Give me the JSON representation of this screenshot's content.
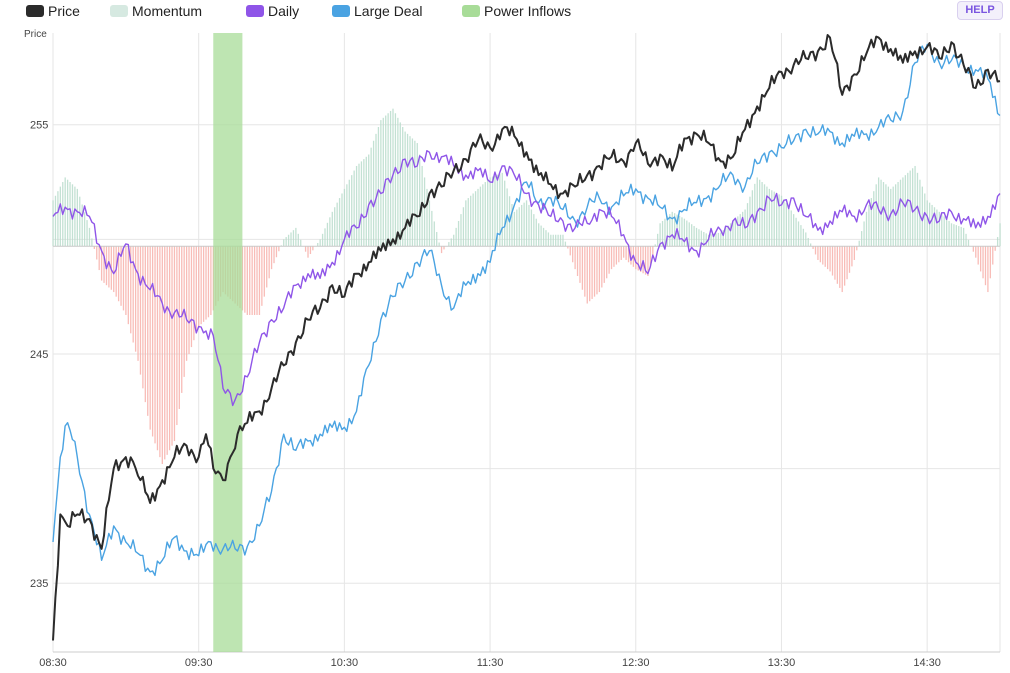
{
  "legend": [
    {
      "label": "Price",
      "color": "#2b2b2b"
    },
    {
      "label": "Momentum",
      "color": "#d6e9e1"
    },
    {
      "label": "Daily",
      "color": "#8f55e8"
    },
    {
      "label": "Large Deal",
      "color": "#4aa3e2"
    },
    {
      "label": "Power Inflows",
      "color": "#a8dc98"
    }
  ],
  "help_label": "HELP",
  "chart_data": {
    "type": "line",
    "ylabel": "Price",
    "y_ticks": [
      235,
      245,
      255
    ],
    "ylim": [
      232,
      259
    ],
    "x_ticks": [
      "08:30",
      "09:30",
      "10:30",
      "11:30",
      "12:30",
      "13:30",
      "14:30"
    ],
    "xlim": [
      "08:30",
      "15:00"
    ],
    "momentum_baseline": 249.7,
    "colors": {
      "price": "#2b2b2b",
      "daily": "#8f55e8",
      "large_deal": "#4aa3e2",
      "momentum_pos": "#b8dccb",
      "momentum_neg": "#f7b0aa",
      "power_inflows": "#a8dc98",
      "grid": "#e6e6e6"
    },
    "power_inflows": [
      {
        "start": "09:36",
        "end": "09:48"
      }
    ],
    "series": [
      {
        "name": "Price",
        "x": [
          "08:30",
          "08:33",
          "08:36",
          "08:40",
          "08:45",
          "08:50",
          "08:55",
          "09:00",
          "09:03",
          "09:06",
          "09:10",
          "09:15",
          "09:20",
          "09:25",
          "09:30",
          "09:33",
          "09:36",
          "09:40",
          "09:43",
          "09:46",
          "09:50",
          "09:55",
          "10:00",
          "10:05",
          "10:10",
          "10:15",
          "10:20",
          "10:25",
          "10:30",
          "10:35",
          "10:40",
          "10:45",
          "10:50",
          "10:55",
          "11:00",
          "11:05",
          "11:10",
          "11:15",
          "11:20",
          "11:25",
          "11:30",
          "11:35",
          "11:40",
          "11:45",
          "11:50",
          "11:55",
          "12:00",
          "12:05",
          "12:10",
          "12:15",
          "12:20",
          "12:25",
          "12:30",
          "12:35",
          "12:40",
          "12:45",
          "12:50",
          "12:55",
          "13:00",
          "13:05",
          "13:10",
          "13:15",
          "13:20",
          "13:25",
          "13:30",
          "13:35",
          "13:40",
          "13:45",
          "13:50",
          "13:55",
          "14:00",
          "14:05",
          "14:10",
          "14:15",
          "14:20",
          "14:25",
          "14:30",
          "14:35",
          "14:40",
          "14:45",
          "14:50",
          "14:55",
          "15:00"
        ],
        "values": [
          232.5,
          238.0,
          237.5,
          238.0,
          237.8,
          236.5,
          240.0,
          240.5,
          240.3,
          239.5,
          238.5,
          239.5,
          240.5,
          241.0,
          240.5,
          241.5,
          240.0,
          239.5,
          240.5,
          241.5,
          242.0,
          242.5,
          243.5,
          244.5,
          245.5,
          246.5,
          247.0,
          248.0,
          247.5,
          248.5,
          249.0,
          249.5,
          250.0,
          250.5,
          251.0,
          252.0,
          252.3,
          253.0,
          253.5,
          254.3,
          254.0,
          254.8,
          254.5,
          253.8,
          252.8,
          252.4,
          252.0,
          252.3,
          252.8,
          253.2,
          253.6,
          253.4,
          254.2,
          253.3,
          253.7,
          253.0,
          254.4,
          254.6,
          254.2,
          253.4,
          253.6,
          254.8,
          255.8,
          256.6,
          257.3,
          257.6,
          257.9,
          258.2,
          258.8,
          256.3,
          257.2,
          258.1,
          258.8,
          258.3,
          257.7,
          258.2,
          258.4,
          257.9,
          258.6,
          257.6,
          256.6,
          257.4,
          256.9
        ]
      },
      {
        "name": "Daily",
        "x": [
          "08:30",
          "08:35",
          "08:40",
          "08:45",
          "08:50",
          "08:55",
          "09:00",
          "09:05",
          "09:10",
          "09:15",
          "09:20",
          "09:25",
          "09:30",
          "09:33",
          "09:36",
          "09:40",
          "09:45",
          "09:50",
          "09:55",
          "10:00",
          "10:05",
          "10:10",
          "10:15",
          "10:20",
          "10:25",
          "10:30",
          "10:35",
          "10:40",
          "10:45",
          "10:50",
          "10:55",
          "11:00",
          "11:05",
          "11:10",
          "11:15",
          "11:20",
          "11:25",
          "11:30",
          "11:35",
          "11:40",
          "11:45",
          "11:50",
          "11:55",
          "12:00",
          "12:05",
          "12:10",
          "12:15",
          "12:20",
          "12:25",
          "12:30",
          "12:35",
          "12:40",
          "12:45",
          "12:50",
          "12:55",
          "13:00",
          "13:05",
          "13:10",
          "13:15",
          "13:20",
          "13:25",
          "13:30",
          "13:35",
          "13:40",
          "13:45",
          "13:50",
          "13:55",
          "14:00",
          "14:05",
          "14:10",
          "14:15",
          "14:20",
          "14:25",
          "14:30",
          "14:35",
          "14:40",
          "14:45",
          "14:50",
          "14:55",
          "15:00"
        ],
        "values": [
          251.0,
          251.4,
          251.2,
          251.0,
          249.5,
          248.5,
          249.8,
          248.5,
          247.8,
          247.2,
          246.8,
          246.5,
          246.2,
          246.0,
          245.8,
          243.5,
          243.0,
          244.0,
          245.5,
          246.5,
          247.0,
          248.0,
          248.5,
          248.3,
          249.0,
          250.0,
          250.5,
          251.5,
          252.0,
          252.8,
          253.5,
          253.2,
          253.8,
          253.6,
          253.2,
          252.8,
          253.0,
          252.5,
          253.2,
          252.8,
          252.0,
          251.5,
          251.0,
          250.8,
          250.5,
          250.7,
          251.3,
          251.0,
          250.2,
          249.0,
          248.5,
          249.8,
          250.2,
          249.9,
          249.5,
          250.0,
          250.4,
          250.8,
          250.5,
          251.2,
          251.8,
          251.5,
          251.8,
          251.0,
          250.4,
          250.8,
          251.2,
          251.0,
          251.5,
          251.3,
          251.1,
          251.6,
          251.3,
          251.0,
          250.8,
          251.2,
          250.9,
          250.5,
          251.0,
          252.0
        ]
      },
      {
        "name": "Large Deal",
        "x": [
          "08:30",
          "08:33",
          "08:36",
          "08:40",
          "08:45",
          "08:50",
          "08:55",
          "09:00",
          "09:05",
          "09:10",
          "09:15",
          "09:20",
          "09:25",
          "09:30",
          "09:35",
          "09:40",
          "09:45",
          "09:50",
          "09:55",
          "10:00",
          "10:05",
          "10:10",
          "10:15",
          "10:20",
          "10:25",
          "10:30",
          "10:35",
          "10:40",
          "10:45",
          "10:50",
          "10:55",
          "11:00",
          "11:05",
          "11:10",
          "11:15",
          "11:20",
          "11:25",
          "11:30",
          "11:35",
          "11:40",
          "11:45",
          "11:50",
          "11:55",
          "12:00",
          "12:05",
          "12:10",
          "12:15",
          "12:20",
          "12:25",
          "12:30",
          "12:35",
          "12:40",
          "12:45",
          "12:50",
          "12:55",
          "13:00",
          "13:05",
          "13:10",
          "13:15",
          "13:20",
          "13:25",
          "13:30",
          "13:35",
          "13:40",
          "13:45",
          "13:50",
          "13:55",
          "14:00",
          "14:05",
          "14:10",
          "14:15",
          "14:20",
          "14:25",
          "14:30",
          "14:35",
          "14:40",
          "14:45",
          "14:50",
          "14:55",
          "15:00"
        ],
        "values": [
          236.8,
          240.5,
          242.0,
          240.5,
          238.0,
          236.0,
          237.5,
          236.8,
          236.3,
          235.5,
          236.0,
          237.0,
          236.4,
          236.2,
          236.8,
          236.5,
          236.5,
          236.6,
          237.5,
          239.0,
          241.5,
          240.8,
          241.2,
          241.5,
          241.8,
          241.8,
          242.5,
          244.5,
          246.5,
          247.5,
          248.2,
          249.0,
          249.5,
          248.0,
          247.0,
          248.0,
          248.5,
          249.0,
          250.5,
          251.5,
          252.5,
          251.6,
          251.8,
          251.3,
          250.8,
          251.4,
          251.8,
          251.4,
          251.9,
          252.2,
          251.8,
          251.4,
          250.9,
          251.3,
          251.6,
          251.9,
          252.4,
          252.8,
          252.3,
          253.3,
          253.8,
          254.0,
          254.3,
          254.8,
          254.6,
          254.7,
          254.2,
          254.5,
          254.6,
          254.9,
          255.2,
          255.6,
          257.7,
          258.5,
          257.7,
          257.8,
          257.6,
          257.4,
          257.0,
          255.4
        ]
      }
    ],
    "momentum": {
      "x": [
        "08:30",
        "08:35",
        "08:40",
        "08:45",
        "08:50",
        "08:55",
        "09:00",
        "09:05",
        "09:10",
        "09:15",
        "09:20",
        "09:25",
        "09:30",
        "09:35",
        "09:40",
        "09:45",
        "09:50",
        "09:55",
        "10:00",
        "10:05",
        "10:10",
        "10:15",
        "10:20",
        "10:25",
        "10:30",
        "10:35",
        "10:40",
        "10:45",
        "10:50",
        "10:55",
        "11:00",
        "11:05",
        "11:10",
        "11:15",
        "11:20",
        "11:25",
        "11:30",
        "11:35",
        "11:40",
        "11:45",
        "11:50",
        "11:55",
        "12:00",
        "12:05",
        "12:10",
        "12:15",
        "12:20",
        "12:25",
        "12:30",
        "12:35",
        "12:40",
        "12:45",
        "12:50",
        "12:55",
        "13:00",
        "13:05",
        "13:10",
        "13:15",
        "13:20",
        "13:25",
        "13:30",
        "13:35",
        "13:40",
        "13:45",
        "13:50",
        "13:55",
        "14:00",
        "14:05",
        "14:10",
        "14:15",
        "14:20",
        "14:25",
        "14:30",
        "14:35",
        "14:40",
        "14:45",
        "14:50",
        "14:55",
        "15:00"
      ],
      "values": [
        2.0,
        3.0,
        2.5,
        0.8,
        -1.5,
        -2.0,
        -3.0,
        -5.0,
        -8.0,
        -9.5,
        -8.5,
        -5.0,
        -3.5,
        -3.0,
        -2.0,
        -2.5,
        -3.0,
        -3.0,
        -1.0,
        0.3,
        0.8,
        -0.5,
        0.3,
        1.5,
        2.5,
        3.5,
        4.0,
        5.5,
        6.0,
        5.0,
        4.5,
        2.0,
        -0.3,
        0.5,
        2.0,
        2.5,
        3.0,
        3.2,
        1.5,
        2.0,
        1.0,
        0.5,
        0.5,
        -1.0,
        -2.5,
        -2.0,
        -1.0,
        -0.5,
        -1.0,
        -1.3,
        1.0,
        1.5,
        1.2,
        0.8,
        0.5,
        0.6,
        1.1,
        1.6,
        3.0,
        2.5,
        2.2,
        1.4,
        0.6,
        -0.6,
        -1.1,
        -2.0,
        -0.6,
        1.5,
        3.0,
        2.5,
        3.0,
        3.5,
        2.0,
        1.5,
        1.0,
        0.8,
        -0.5,
        -2.0,
        1.0
      ]
    }
  }
}
